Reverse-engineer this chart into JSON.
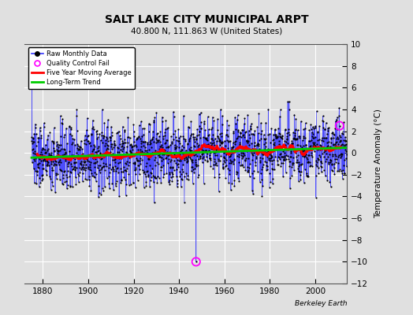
{
  "title": "SALT LAKE CITY MUNICIPAL ARPT",
  "subtitle": "40.800 N, 111.863 W (United States)",
  "ylabel": "Temperature Anomaly (°C)",
  "credit": "Berkeley Earth",
  "xlim": [
    1872,
    2014
  ],
  "ylim": [
    -12,
    10
  ],
  "yticks": [
    -12,
    -10,
    -8,
    -6,
    -4,
    -2,
    0,
    2,
    4,
    6,
    8,
    10
  ],
  "xticks": [
    1880,
    1900,
    1920,
    1940,
    1960,
    1980,
    2000
  ],
  "bg_color": "#e0e0e0",
  "fig_color": "#e0e0e0",
  "grid_color": "#ffffff",
  "line_color_raw": "#3333ff",
  "line_color_moving_avg": "#ff0000",
  "line_color_trend": "#00cc00",
  "marker_color": "#000000",
  "qc_fail_color": "#ff00ff",
  "seed": 137,
  "start_year": 1875,
  "end_year": 2013,
  "noise_std": 1.5,
  "trend_slope": 0.007,
  "qc_fail_1_year": 1947,
  "qc_fail_1_month": 6,
  "qc_fail_1_val": -10.0,
  "qc_fail_2_year": 2010,
  "qc_fail_2_month": 9,
  "qc_fail_2_val": 2.5
}
